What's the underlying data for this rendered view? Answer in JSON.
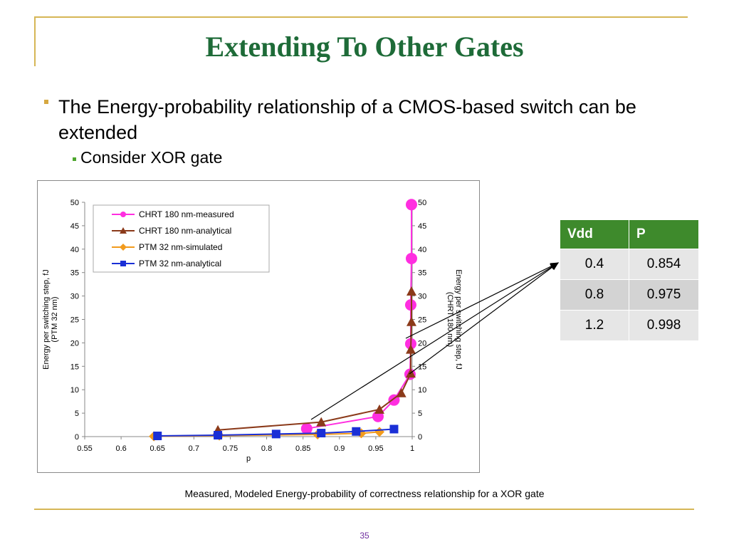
{
  "slide": {
    "title": "Extending To Other Gates",
    "bullet_1": "The Energy-probability relationship of a CMOS-based switch can be extended",
    "bullet_2": "Consider XOR gate",
    "caption": "Measured, Modeled Energy-probability of correctness relationship for a XOR gate",
    "page_number": "35"
  },
  "table": {
    "headers": [
      "Vdd",
      "P"
    ],
    "rows": [
      [
        "0.4",
        "0.854"
      ],
      [
        "0.8",
        "0.975"
      ],
      [
        "1.2",
        "0.998"
      ]
    ]
  },
  "chart_data": {
    "type": "scatter",
    "xlabel": "p",
    "ylabel_left": "Energy per switching step, fJ (PTM 32 nm)",
    "ylabel_right": "Energy per switching step, fJ (CHRT 180 nm)",
    "xlim": [
      0.55,
      1.0
    ],
    "ylim": [
      0,
      50
    ],
    "xticks": [
      "0.55",
      "0.6",
      "0.65",
      "0.7",
      "0.75",
      "0.8",
      "0.85",
      "0.9",
      "0.95",
      "1"
    ],
    "yticks": [
      "0",
      "5",
      "10",
      "15",
      "20",
      "25",
      "30",
      "35",
      "40",
      "45",
      "50"
    ],
    "grid": false,
    "legend_position": "top-left",
    "series": [
      {
        "name": "CHRT 180 nm-measured",
        "color": "#ff2ee0",
        "marker": "circle",
        "x": [
          0.855,
          0.953,
          0.975,
          0.997,
          0.998,
          0.998,
          0.999,
          0.999
        ],
        "y": [
          1.7,
          4.3,
          7.8,
          13.3,
          19.8,
          28.1,
          38.0,
          49.5
        ]
      },
      {
        "name": "CHRT 180 nm-analytical",
        "color": "#8b3a1a",
        "marker": "triangle",
        "x": [
          0.733,
          0.875,
          0.955,
          0.985,
          0.998,
          0.998,
          0.999,
          0.999
        ],
        "y": [
          1.4,
          3.1,
          5.8,
          9.3,
          13.5,
          18.6,
          24.5,
          31.0
        ]
      },
      {
        "name": "PTM 32 nm-simulated",
        "color": "#f29b1d",
        "marker": "diamond",
        "x": [
          0.645,
          0.735,
          0.87,
          0.93,
          0.955
        ],
        "y": [
          0.05,
          0.2,
          0.45,
          0.7,
          1.0
        ]
      },
      {
        "name": "PTM 32 nm-analytical",
        "color": "#1a2fd6",
        "marker": "square",
        "x": [
          0.65,
          0.733,
          0.813,
          0.875,
          0.923,
          0.975
        ],
        "y": [
          0.15,
          0.3,
          0.55,
          0.75,
          1.1,
          1.6
        ]
      }
    ]
  }
}
